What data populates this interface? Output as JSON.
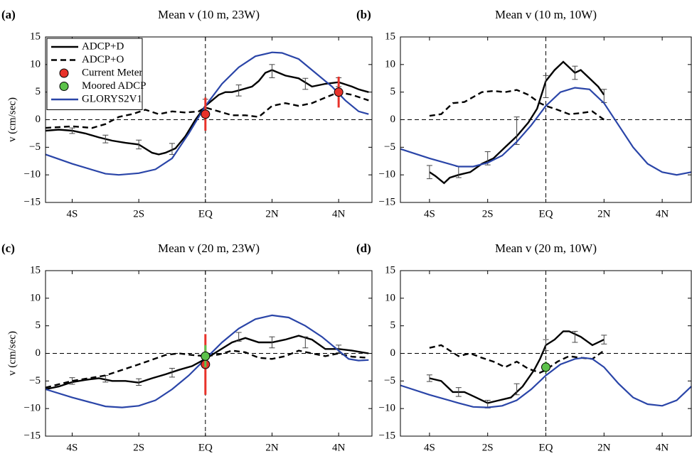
{
  "chart_data": [
    {
      "type": "line",
      "panel_label": "(a)",
      "title": "Mean v (10 m, 23W)",
      "ylabel": "v (cm/sec)",
      "xlim": [
        -4.8,
        5.0
      ],
      "ylim": [
        -15,
        15
      ],
      "xticks": [
        {
          "value": -4,
          "label": "4S"
        },
        {
          "value": -2,
          "label": "2S"
        },
        {
          "value": 0,
          "label": "EQ"
        },
        {
          "value": 2,
          "label": "2N"
        },
        {
          "value": 4,
          "label": "4N"
        }
      ],
      "yticks": [
        {
          "value": -15,
          "label": "−15"
        },
        {
          "value": -10,
          "label": "−10"
        },
        {
          "value": -5,
          "label": "−5"
        },
        0,
        5,
        10,
        15
      ],
      "legend": "upper left",
      "series": [
        {
          "name": "ADCP+D",
          "kind": "line",
          "color": "#000000",
          "dashed": false,
          "x": [
            -4.8,
            -4.4,
            -4,
            -3.6,
            -3.2,
            -2.8,
            -2.4,
            -2,
            -1.6,
            -1.4,
            -1.2,
            -0.9,
            -0.6,
            -0.3,
            0,
            0.2,
            0.4,
            0.6,
            0.8,
            1,
            1.4,
            1.6,
            1.8,
            2,
            2.2,
            2.4,
            2.8,
            3.2,
            3.6,
            4,
            4.4,
            4.6,
            4.9
          ],
          "values": [
            -2,
            -1.8,
            -2,
            -2.5,
            -3.2,
            -3.8,
            -4.2,
            -4.5,
            -6,
            -6.3,
            -6,
            -5.2,
            -3,
            0,
            2.5,
            3.5,
            4.5,
            5,
            5,
            5.3,
            6,
            7,
            8.5,
            9,
            8.5,
            8,
            7.5,
            6,
            6.5,
            6.8,
            6,
            5.5,
            5
          ],
          "errorbars": {
            "x": [
              -4,
              -3,
              -2,
              -1,
              0,
              1,
              2,
              3,
              4
            ],
            "values": [
              -2,
              -3.5,
              -4.5,
              -5.3,
              2.5,
              5.3,
              8.8,
              6.5,
              6.8
            ],
            "errors": [
              0.5,
              0.7,
              0.8,
              1,
              1.2,
              1,
              1.2,
              1,
              0.8
            ]
          }
        },
        {
          "name": "ADCP+O",
          "kind": "line",
          "color": "#000000",
          "dashed": true,
          "x": [
            -4.8,
            -4,
            -3.4,
            -3,
            -2.6,
            -2.2,
            -1.8,
            -1.4,
            -1,
            -0.6,
            -0.2,
            0,
            0.4,
            0.8,
            1.2,
            1.6,
            2,
            2.4,
            2.8,
            3.2,
            3.6,
            4,
            4.4,
            4.9
          ],
          "values": [
            -1.5,
            -1.2,
            -1.5,
            -0.8,
            0.5,
            1,
            1.8,
            1,
            1.5,
            1.3,
            1.5,
            2.2,
            1.5,
            0.8,
            0.8,
            0.5,
            2.5,
            3,
            2.5,
            3,
            4,
            5,
            4.5,
            3.5
          ]
        },
        {
          "name": "Current Meter",
          "kind": "points",
          "color": "#e8322a",
          "x": [
            0,
            4
          ],
          "values": [
            1,
            5
          ],
          "errors": [
            3,
            2.8
          ]
        },
        {
          "name": "Moored ADCP",
          "kind": "points",
          "color": "#5cc24a",
          "x": [],
          "values": [],
          "errors": []
        },
        {
          "name": "GLORYS2V1",
          "kind": "line",
          "color": "#2a45a8",
          "dashed": false,
          "x": [
            -4.8,
            -4,
            -3,
            -2.6,
            -2,
            -1.5,
            -1,
            -0.5,
            0,
            0.5,
            1,
            1.5,
            2,
            2.3,
            2.8,
            3.3,
            3.8,
            4.2,
            4.6,
            4.9
          ],
          "values": [
            -6.3,
            -8,
            -9.8,
            -10,
            -9.7,
            -9,
            -7,
            -2.5,
            2.5,
            6.5,
            9.5,
            11.5,
            12.2,
            12.1,
            11,
            8.5,
            6,
            3.5,
            1.5,
            1
          ]
        }
      ]
    },
    {
      "type": "line",
      "panel_label": "(b)",
      "title": "Mean v (10 m, 10W)",
      "xlim": [
        -5,
        5
      ],
      "ylim": [
        -15,
        15
      ],
      "xticks": [
        {
          "value": -4,
          "label": "4S"
        },
        {
          "value": -2,
          "label": "2S"
        },
        {
          "value": 0,
          "label": "EQ"
        },
        {
          "value": 2,
          "label": "2N"
        },
        {
          "value": 4,
          "label": "4N"
        }
      ],
      "yticks": [
        {
          "value": -15,
          "label": "−15"
        },
        {
          "value": -10,
          "label": "−10"
        },
        {
          "value": -5,
          "label": "−5"
        },
        0,
        5,
        10,
        15
      ],
      "series": [
        {
          "kind": "line",
          "color": "#000000",
          "dashed": false,
          "x": [
            -4,
            -3.8,
            -3.5,
            -3.3,
            -3,
            -2.6,
            -2.2,
            -1.8,
            -1.4,
            -1,
            -0.6,
            -0.3,
            0,
            0.3,
            0.6,
            0.8,
            1,
            1.2,
            1.5,
            1.8,
            2
          ],
          "values": [
            -9.5,
            -10.2,
            -11.5,
            -10.5,
            -10,
            -9.5,
            -8,
            -7,
            -5,
            -3,
            -0.5,
            2,
            7,
            9,
            10.5,
            9.5,
            8.5,
            9,
            7.5,
            6,
            4.5
          ],
          "errorbars": {
            "x": [
              -4,
              -3,
              -2,
              -1,
              0,
              1,
              2
            ],
            "values": [
              -9.5,
              -9.5,
              -7,
              -2,
              6,
              8.5,
              4.3
            ],
            "errors": [
              1.2,
              1,
              1.2,
              2.5,
              2,
              1.2,
              1.2
            ]
          }
        },
        {
          "kind": "line",
          "color": "#000000",
          "dashed": true,
          "x": [
            -4,
            -3.6,
            -3.2,
            -2.8,
            -2.2,
            -1.8,
            -1.4,
            -1,
            -0.6,
            -0.2,
            0,
            0.4,
            0.8,
            1.2,
            1.6,
            2
          ],
          "values": [
            0.7,
            1,
            3,
            3.2,
            5,
            5.2,
            5,
            5.4,
            4.5,
            3,
            2.5,
            1.8,
            1,
            1.2,
            1.5,
            0
          ]
        },
        {
          "kind": "line",
          "color": "#2a45a8",
          "dashed": false,
          "x": [
            -5,
            -4,
            -3,
            -2.5,
            -2,
            -1.5,
            -1,
            -0.5,
            0,
            0.5,
            1,
            1.5,
            2,
            2.5,
            3,
            3.5,
            4,
            4.5,
            5
          ],
          "values": [
            -5.3,
            -7,
            -8.5,
            -8.5,
            -7.8,
            -6.5,
            -4,
            -1,
            2.5,
            5,
            5.8,
            5.5,
            3,
            -1,
            -5,
            -8,
            -9.5,
            -10,
            -9.5
          ]
        }
      ]
    },
    {
      "type": "line",
      "panel_label": "(c)",
      "title": "Mean v (20 m, 23W)",
      "ylabel": "v (cm/sec)",
      "xlim": [
        -4.8,
        5.0
      ],
      "ylim": [
        -15,
        15
      ],
      "xticks": [
        {
          "value": -4,
          "label": "4S"
        },
        {
          "value": -2,
          "label": "2S"
        },
        {
          "value": 0,
          "label": "EQ"
        },
        {
          "value": 2,
          "label": "2N"
        },
        {
          "value": 4,
          "label": "4N"
        }
      ],
      "yticks": [
        {
          "value": -15,
          "label": "−15"
        },
        {
          "value": -10,
          "label": "−10"
        },
        {
          "value": -5,
          "label": "−5"
        },
        0,
        5,
        10,
        15
      ],
      "series": [
        {
          "kind": "line",
          "color": "#000000",
          "dashed": false,
          "x": [
            -4.8,
            -4.4,
            -4,
            -3.6,
            -3.2,
            -2.8,
            -2.4,
            -2,
            -1.6,
            -1.2,
            -0.8,
            -0.4,
            0,
            0.4,
            0.8,
            1.2,
            1.6,
            2,
            2.4,
            2.8,
            3.2,
            3.6,
            4,
            4.4,
            4.9
          ],
          "values": [
            -6.5,
            -6,
            -5.2,
            -4.8,
            -4.5,
            -5,
            -5,
            -5.3,
            -4.5,
            -3.8,
            -3,
            -2.3,
            -1,
            0.5,
            2,
            2.8,
            2,
            2,
            2.5,
            3.2,
            2.5,
            0.8,
            0.8,
            0.5,
            0
          ],
          "errorbars": {
            "x": [
              -4,
              -3,
              -2,
              -1,
              1,
              2,
              3,
              4
            ],
            "values": [
              -5,
              -4.6,
              -5.2,
              -3.5,
              3,
              2,
              2,
              0.8
            ],
            "errors": [
              0.6,
              0.6,
              0.6,
              0.8,
              0.8,
              1,
              1,
              0.7
            ]
          }
        },
        {
          "kind": "line",
          "color": "#000000",
          "dashed": true,
          "x": [
            -4.8,
            -4,
            -3,
            -2,
            -1.2,
            -0.8,
            -0.4,
            0,
            0.4,
            0.8,
            1.2,
            1.6,
            2,
            2.4,
            2.8,
            3.2,
            3.6,
            4,
            4.4,
            4.9
          ],
          "values": [
            -6.2,
            -5,
            -4,
            -2,
            -0.3,
            0,
            -0.3,
            -0.5,
            -0.2,
            0.5,
            0.2,
            -0.8,
            -1,
            -0.5,
            0.5,
            0,
            -0.5,
            0,
            -0.6,
            -0.8
          ]
        },
        {
          "kind": "points",
          "color": "#e8322a",
          "x": [
            0
          ],
          "values": [
            -2
          ],
          "errors": [
            5.5
          ]
        },
        {
          "kind": "points",
          "color": "#5cc24a",
          "x": [
            0
          ],
          "values": [
            -0.5
          ],
          "errors": [
            2
          ]
        },
        {
          "kind": "line",
          "color": "#2a45a8",
          "dashed": false,
          "x": [
            -4.8,
            -4,
            -3,
            -2.5,
            -2,
            -1.5,
            -1,
            -0.5,
            0,
            0.5,
            1,
            1.5,
            2,
            2.5,
            3,
            3.5,
            4,
            4.3,
            4.6,
            4.9
          ],
          "values": [
            -6.5,
            -8,
            -9.6,
            -9.8,
            -9.5,
            -8.5,
            -6.5,
            -4,
            -1,
            2,
            4.5,
            6.2,
            6.9,
            6.5,
            5,
            3,
            0.5,
            -1,
            -1.3,
            -1.2
          ]
        }
      ]
    },
    {
      "type": "line",
      "panel_label": "(d)",
      "title": "Mean v (20 m, 10W)",
      "xlim": [
        -5,
        5
      ],
      "ylim": [
        -15,
        15
      ],
      "xticks": [
        {
          "value": -4,
          "label": "4S"
        },
        {
          "value": -2,
          "label": "2S"
        },
        {
          "value": 0,
          "label": "EQ"
        },
        {
          "value": 2,
          "label": "2N"
        },
        {
          "value": 4,
          "label": "4N"
        }
      ],
      "yticks": [
        {
          "value": -15,
          "label": "−15"
        },
        {
          "value": -10,
          "label": "−10"
        },
        {
          "value": -5,
          "label": "−5"
        },
        0,
        5,
        10,
        15
      ],
      "series": [
        {
          "kind": "line",
          "color": "#000000",
          "dashed": false,
          "x": [
            -4,
            -3.6,
            -3.2,
            -2.8,
            -2.4,
            -2,
            -1.6,
            -1.2,
            -0.8,
            -0.4,
            -0.2,
            0,
            0.3,
            0.6,
            0.8,
            1.2,
            1.6,
            2
          ],
          "values": [
            -4.5,
            -5,
            -7,
            -7,
            -8,
            -9,
            -8.5,
            -8,
            -6,
            -3,
            -1,
            1.5,
            2.5,
            4,
            4,
            3,
            1.5,
            2.5
          ],
          "errorbars": {
            "x": [
              -4,
              -3,
              -2,
              -1,
              0,
              1,
              2
            ],
            "values": [
              -4.5,
              -7,
              -9.2,
              -6.5,
              1.5,
              3,
              2.5
            ],
            "errors": [
              0.6,
              0.8,
              0.7,
              1,
              1,
              1,
              0.8
            ]
          }
        },
        {
          "kind": "line",
          "color": "#000000",
          "dashed": true,
          "x": [
            -4,
            -3.6,
            -3.3,
            -3,
            -2.6,
            -2.2,
            -1.8,
            -1.4,
            -1,
            -0.6,
            -0.2,
            0,
            0.4,
            0.8,
            1.2,
            1.6,
            2
          ],
          "values": [
            1,
            1.5,
            0.5,
            -0.5,
            0,
            -0.8,
            -1.5,
            -2.5,
            -1.5,
            -2.8,
            -3.5,
            -3,
            -1.5,
            -0.5,
            -0.8,
            -1,
            0.5
          ]
        },
        {
          "kind": "points",
          "color": "#5cc24a",
          "x": [
            0
          ],
          "values": [
            -2.5
          ],
          "errors": [
            1
          ]
        },
        {
          "kind": "line",
          "color": "#2a45a8",
          "dashed": false,
          "x": [
            -5,
            -4,
            -3,
            -2.5,
            -2,
            -1.5,
            -1,
            -0.5,
            0,
            0.5,
            1,
            1.3,
            1.6,
            2,
            2.5,
            3,
            3.5,
            4,
            4.5,
            5
          ],
          "values": [
            -5.8,
            -7.5,
            -9,
            -9.7,
            -9.8,
            -9.5,
            -8.5,
            -6.5,
            -4,
            -2,
            -1,
            -0.8,
            -1,
            -2.5,
            -5.5,
            -8,
            -9.2,
            -9.5,
            -8.5,
            -6
          ]
        }
      ]
    }
  ]
}
